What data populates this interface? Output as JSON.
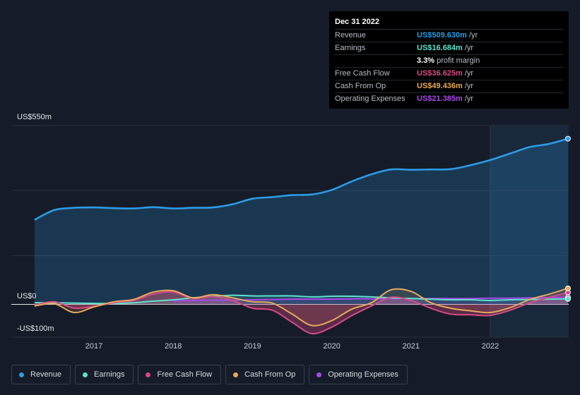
{
  "colors": {
    "revenue": "#2d9be6",
    "earnings": "#5fe2cd",
    "free_cash_flow": "#d94a87",
    "cash_from_op": "#e8a95b",
    "operating_expenses": "#a64ae8"
  },
  "tooltip": {
    "date": "Dec 31 2022",
    "rows": [
      {
        "label": "Revenue",
        "value": "US$509.630m",
        "unit": "/yr"
      },
      {
        "label": "Earnings",
        "value": "US$16.684m",
        "unit": "/yr"
      },
      {
        "label": "",
        "value": "3.3%",
        "unit": "profit margin"
      },
      {
        "label": "Free Cash Flow",
        "value": "US$36.625m",
        "unit": "/yr"
      },
      {
        "label": "Cash From Op",
        "value": "US$49.436m",
        "unit": "/yr"
      },
      {
        "label": "Operating Expenses",
        "value": "US$21.385m",
        "unit": "/yr"
      }
    ]
  },
  "legend": [
    {
      "label": "Revenue"
    },
    {
      "label": "Earnings"
    },
    {
      "label": "Free Cash Flow"
    },
    {
      "label": "Cash From Op"
    },
    {
      "label": "Operating Expenses"
    }
  ],
  "chart_data": {
    "type": "area",
    "x_tick_labels": [
      "2017",
      "2018",
      "2019",
      "2020",
      "2021",
      "2022"
    ],
    "y_labels": {
      "top": "US$550m",
      "zero": "US$0",
      "bottom": "-US$100m"
    },
    "ylim": [
      -100,
      550
    ],
    "grid": true,
    "x": [
      2016.25,
      2016.5,
      2016.75,
      2017.0,
      2017.25,
      2017.5,
      2017.75,
      2018.0,
      2018.25,
      2018.5,
      2018.75,
      2019.0,
      2019.25,
      2019.5,
      2019.75,
      2020.0,
      2020.25,
      2020.5,
      2020.75,
      2021.0,
      2021.25,
      2021.5,
      2021.75,
      2022.0,
      2022.25,
      2022.5,
      2022.75,
      2022.98
    ],
    "series": [
      {
        "name": "Revenue",
        "key": "revenue",
        "values": [
          260,
          290,
          297,
          298,
          296,
          295,
          299,
          295,
          297,
          298,
          308,
          325,
          330,
          336,
          338,
          352,
          378,
          400,
          415,
          414,
          415,
          416,
          428,
          444,
          464,
          484,
          494,
          509.6
        ]
      },
      {
        "name": "Earnings",
        "key": "earnings",
        "values": [
          5,
          5,
          4,
          3,
          3,
          5,
          10,
          14,
          20,
          25,
          28,
          26,
          26,
          26,
          23,
          25,
          25,
          23,
          20,
          18,
          16,
          14,
          14,
          12,
          14,
          15,
          16,
          16.7
        ]
      },
      {
        "name": "Free Cash Flow",
        "key": "free_cash_flow",
        "values": [
          -2,
          8,
          -12,
          -6,
          5,
          12,
          32,
          38,
          18,
          24,
          12,
          -12,
          -18,
          -55,
          -90,
          -70,
          -35,
          -5,
          22,
          12,
          -12,
          -30,
          -32,
          -34,
          -18,
          5,
          22,
          36.6
        ]
      },
      {
        "name": "Cash From Op",
        "key": "cash_from_op",
        "values": [
          -5,
          2,
          -25,
          -8,
          8,
          15,
          38,
          42,
          20,
          30,
          20,
          8,
          4,
          -30,
          -65,
          -50,
          -15,
          5,
          45,
          40,
          5,
          -12,
          -20,
          -25,
          -10,
          15,
          32,
          49.4
        ]
      },
      {
        "name": "Operating Expenses",
        "key": "operating_expenses",
        "values": [
          null,
          null,
          null,
          null,
          null,
          null,
          null,
          10,
          12,
          13,
          13,
          14,
          15,
          16,
          16,
          16,
          17,
          17,
          18,
          18,
          18,
          18,
          18,
          19,
          19,
          20,
          21,
          21.4
        ]
      }
    ],
    "highlight_start": 2022.0
  }
}
